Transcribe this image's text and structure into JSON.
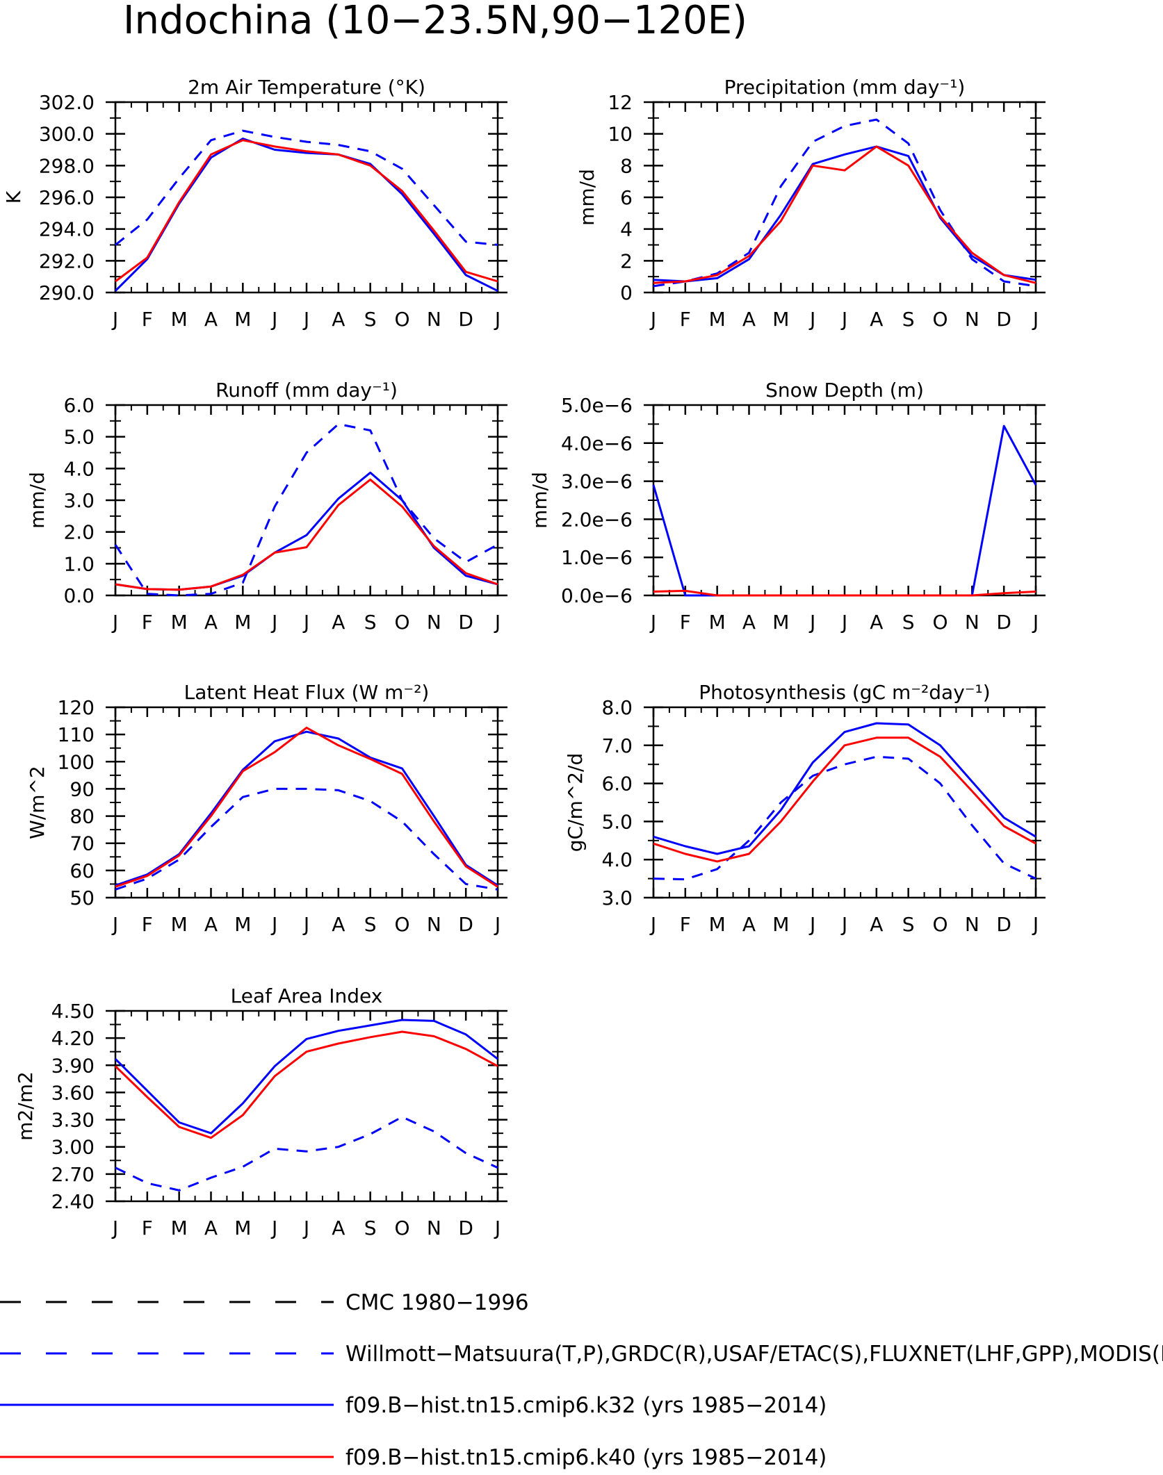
{
  "title": "Indochina (10−23.5N,90−120E)",
  "months": [
    "J",
    "F",
    "M",
    "A",
    "M",
    "J",
    "J",
    "A",
    "S",
    "O",
    "N",
    "D",
    "J"
  ],
  "legend": [
    {
      "label": "CMC 1980−1996",
      "color": "#000000",
      "dashed": true
    },
    {
      "label": "Willmott−Matsuura(T,P),GRDC(R),USAF/ETAC(S),FLUXNET(LHF,GPP),MODIS(L",
      "color": "#0000ff",
      "dashed": true
    },
    {
      "label": "f09.B−hist.tn15.cmip6.k32 (yrs 1985−2014)",
      "color": "#0000ff",
      "dashed": false
    },
    {
      "label": "f09.B−hist.tn15.cmip6.k40 (yrs 1985−2014)",
      "color": "#ff0000",
      "dashed": false
    }
  ],
  "colors": {
    "obs": "#0000ff",
    "k32": "#0000ff",
    "k40": "#ff0000"
  },
  "chart_data": [
    {
      "type": "line",
      "title": "2m Air Temperature (°K)",
      "ylabel": "K",
      "categories": [
        "J",
        "F",
        "M",
        "A",
        "M",
        "J",
        "J",
        "A",
        "S",
        "O",
        "N",
        "D",
        "J"
      ],
      "ylim": [
        290.0,
        302.0
      ],
      "yticks": [
        "290.0",
        "292.0",
        "294.0",
        "296.0",
        "298.0",
        "300.0",
        "302.0"
      ],
      "series": [
        {
          "key": "obs",
          "values": [
            293.0,
            294.6,
            297.2,
            299.6,
            300.2,
            299.8,
            299.5,
            299.3,
            298.9,
            297.8,
            295.5,
            293.2,
            293.0
          ]
        },
        {
          "key": "k32",
          "values": [
            290.1,
            292.1,
            295.6,
            298.5,
            299.7,
            299.0,
            298.8,
            298.7,
            298.1,
            296.2,
            293.7,
            291.1,
            290.1
          ]
        },
        {
          "key": "k40",
          "values": [
            290.7,
            292.2,
            295.7,
            298.7,
            299.6,
            299.2,
            298.9,
            298.7,
            298.0,
            296.4,
            293.9,
            291.3,
            290.7
          ]
        }
      ]
    },
    {
      "type": "line",
      "title": "Precipitation (mm day⁻¹)",
      "ylabel": "mm/d",
      "categories": [
        "J",
        "F",
        "M",
        "A",
        "M",
        "J",
        "J",
        "A",
        "S",
        "O",
        "N",
        "D",
        "J"
      ],
      "ylim": [
        0,
        12
      ],
      "yticks": [
        "0",
        "2",
        "4",
        "6",
        "8",
        "10",
        "12"
      ],
      "series": [
        {
          "key": "obs",
          "values": [
            0.4,
            0.7,
            1.2,
            2.5,
            6.7,
            9.5,
            10.5,
            10.9,
            9.4,
            5.2,
            2.1,
            0.7,
            0.4
          ]
        },
        {
          "key": "k32",
          "values": [
            0.8,
            0.7,
            0.9,
            2.1,
            4.9,
            8.1,
            8.7,
            9.2,
            8.6,
            4.7,
            2.3,
            1.1,
            0.8
          ]
        },
        {
          "key": "k40",
          "values": [
            0.6,
            0.7,
            1.1,
            2.3,
            4.5,
            8.0,
            7.7,
            9.2,
            8.0,
            4.8,
            2.5,
            1.1,
            0.6
          ]
        }
      ]
    },
    {
      "type": "line",
      "title": "Runoff (mm day⁻¹)",
      "ylabel": "mm/d",
      "categories": [
        "J",
        "F",
        "M",
        "A",
        "M",
        "J",
        "J",
        "A",
        "S",
        "O",
        "N",
        "D",
        "J"
      ],
      "ylim": [
        0.0,
        6.0
      ],
      "yticks": [
        "0.0",
        "1.0",
        "2.0",
        "3.0",
        "4.0",
        "5.0",
        "6.0"
      ],
      "series": [
        {
          "key": "obs",
          "values": [
            1.6,
            0.05,
            0.0,
            0.05,
            0.4,
            2.8,
            4.5,
            5.4,
            5.2,
            3.0,
            1.8,
            1.05,
            1.6
          ]
        },
        {
          "key": "k32",
          "values": [
            0.35,
            0.2,
            0.18,
            0.28,
            0.62,
            1.35,
            1.9,
            3.05,
            3.87,
            3.0,
            1.5,
            0.62,
            0.35
          ]
        },
        {
          "key": "k40",
          "values": [
            0.35,
            0.2,
            0.18,
            0.28,
            0.65,
            1.35,
            1.52,
            2.85,
            3.65,
            2.8,
            1.55,
            0.7,
            0.35
          ]
        }
      ]
    },
    {
      "type": "line",
      "title": "Snow Depth (m)",
      "ylabel": "mm/d",
      "categories": [
        "J",
        "F",
        "M",
        "A",
        "M",
        "J",
        "J",
        "A",
        "S",
        "O",
        "N",
        "D",
        "J"
      ],
      "ylim": [
        0,
        5e-06
      ],
      "yticks": [
        "0.0e−6",
        "1.0e−6",
        "2.0e−6",
        "3.0e−6",
        "4.0e−6",
        "5.0e−6"
      ],
      "series": [
        {
          "key": "k32",
          "values": [
            2.9e-06,
            0.0,
            0.0,
            0.0,
            0.0,
            0.0,
            0.0,
            0.0,
            0.0,
            0.0,
            0.0,
            4.45e-06,
            2.9e-06
          ]
        },
        {
          "key": "k40",
          "values": [
            1e-07,
            1.2e-07,
            0.0,
            0.0,
            0.0,
            0.0,
            0.0,
            0.0,
            0.0,
            0.0,
            0.0,
            6e-08,
            1e-07
          ]
        }
      ]
    },
    {
      "type": "line",
      "title": "Latent Heat Flux (W m⁻²)",
      "ylabel": "W/m^2",
      "categories": [
        "J",
        "F",
        "M",
        "A",
        "M",
        "J",
        "J",
        "A",
        "S",
        "O",
        "N",
        "D",
        "J"
      ],
      "ylim": [
        50,
        120
      ],
      "yticks": [
        "50",
        "60",
        "70",
        "80",
        "90",
        "100",
        "110",
        "120"
      ],
      "series": [
        {
          "key": "obs",
          "values": [
            53,
            57,
            64,
            76,
            87,
            90,
            90,
            89.5,
            85.5,
            78,
            66,
            55,
            53
          ]
        },
        {
          "key": "k32",
          "values": [
            54.5,
            58.5,
            66,
            81,
            97,
            107.5,
            111,
            108.5,
            101.5,
            97.5,
            80,
            62,
            54.5
          ]
        },
        {
          "key": "k40",
          "values": [
            54,
            58,
            65.5,
            80,
            96.5,
            103.5,
            112.5,
            106,
            101,
            95.5,
            78,
            61.5,
            54
          ]
        }
      ]
    },
    {
      "type": "line",
      "title": "Photosynthesis (gC m⁻²day⁻¹)",
      "ylabel": "gC/m^2/d",
      "categories": [
        "J",
        "F",
        "M",
        "A",
        "M",
        "J",
        "J",
        "A",
        "S",
        "O",
        "N",
        "D",
        "J"
      ],
      "ylim": [
        3.0,
        8.0
      ],
      "yticks": [
        "3.0",
        "4.0",
        "5.0",
        "6.0",
        "7.0",
        "8.0"
      ],
      "series": [
        {
          "key": "obs",
          "values": [
            3.5,
            3.48,
            3.75,
            4.5,
            5.5,
            6.2,
            6.5,
            6.7,
            6.65,
            6.0,
            4.9,
            3.9,
            3.5
          ]
        },
        {
          "key": "k32",
          "values": [
            4.6,
            4.35,
            4.15,
            4.35,
            5.3,
            6.55,
            7.35,
            7.58,
            7.55,
            7.0,
            6.05,
            5.1,
            4.6
          ]
        },
        {
          "key": "k40",
          "values": [
            4.42,
            4.15,
            3.95,
            4.15,
            5.0,
            6.05,
            7.0,
            7.2,
            7.2,
            6.7,
            5.8,
            4.88,
            4.42
          ]
        }
      ]
    },
    {
      "type": "line",
      "title": "Leaf Area Index",
      "ylabel": "m2/m2",
      "categories": [
        "J",
        "F",
        "M",
        "A",
        "M",
        "J",
        "J",
        "A",
        "S",
        "O",
        "N",
        "D",
        "J"
      ],
      "ylim": [
        2.4,
        4.5
      ],
      "yticks": [
        "2.40",
        "2.70",
        "3.00",
        "3.30",
        "3.60",
        "3.90",
        "4.20",
        "4.50"
      ],
      "series": [
        {
          "key": "obs",
          "values": [
            2.77,
            2.6,
            2.52,
            2.66,
            2.78,
            2.98,
            2.95,
            3.0,
            3.14,
            3.33,
            3.17,
            2.93,
            2.77
          ]
        },
        {
          "key": "k32",
          "values": [
            3.97,
            3.62,
            3.27,
            3.15,
            3.48,
            3.89,
            4.19,
            4.28,
            4.34,
            4.4,
            4.39,
            4.24,
            3.97
          ]
        },
        {
          "key": "k40",
          "values": [
            3.89,
            3.55,
            3.22,
            3.1,
            3.35,
            3.78,
            4.05,
            4.14,
            4.21,
            4.27,
            4.22,
            4.08,
            3.89
          ]
        }
      ]
    }
  ]
}
